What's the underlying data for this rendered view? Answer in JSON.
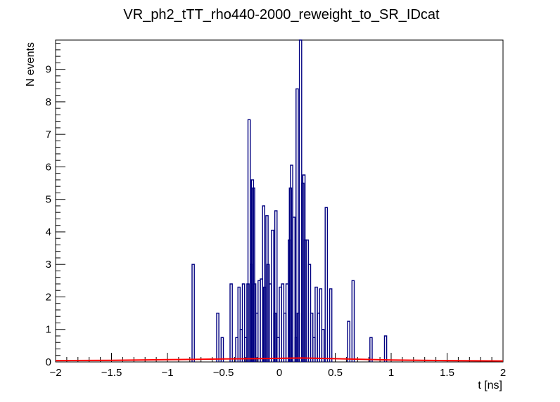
{
  "chart_data": {
    "type": "histogram",
    "title": "VR_ph2_tTT_rho440-2000_reweight_to_SR_IDcat",
    "xlabel": "t [ns]",
    "ylabel": "N events",
    "xlim": [
      -2,
      2
    ],
    "ylim": [
      0,
      9.9
    ],
    "x_tick_labels": [
      "−2",
      "−1.5",
      "−1",
      "−0.5",
      "0",
      "0.5",
      "1",
      "1.5",
      "2"
    ],
    "y_tick_labels": [
      "0",
      "1",
      "2",
      "3",
      "4",
      "5",
      "6",
      "7",
      "8",
      "9"
    ],
    "grid": false,
    "legend": "none",
    "series": [
      {
        "color": "#000080",
        "style": "step",
        "bins": [
          [
            -0.78,
            3.0
          ],
          [
            -0.56,
            1.5
          ],
          [
            -0.52,
            0.75
          ],
          [
            -0.44,
            2.4
          ],
          [
            -0.39,
            0.75
          ],
          [
            -0.37,
            2.3
          ],
          [
            -0.35,
            1.0
          ],
          [
            -0.33,
            2.4
          ],
          [
            -0.31,
            0.75
          ],
          [
            -0.29,
            2.4
          ],
          [
            -0.28,
            7.45
          ],
          [
            -0.26,
            3.0
          ],
          [
            -0.25,
            5.6
          ],
          [
            -0.24,
            5.35
          ],
          [
            -0.23,
            2.4
          ],
          [
            -0.21,
            1.5
          ],
          [
            -0.19,
            2.5
          ],
          [
            -0.17,
            2.55
          ],
          [
            -0.15,
            4.8
          ],
          [
            -0.14,
            2.3
          ],
          [
            -0.12,
            4.5
          ],
          [
            -0.11,
            3.0
          ],
          [
            -0.09,
            2.4
          ],
          [
            -0.07,
            4.05
          ],
          [
            -0.05,
            1.5
          ],
          [
            -0.04,
            4.65
          ],
          [
            -0.02,
            0.75
          ],
          [
            0.0,
            2.3
          ],
          [
            0.02,
            2.4
          ],
          [
            0.04,
            1.5
          ],
          [
            0.06,
            2.4
          ],
          [
            0.08,
            3.75
          ],
          [
            0.09,
            5.35
          ],
          [
            0.1,
            6.05
          ],
          [
            0.12,
            4.45
          ],
          [
            0.14,
            0.75
          ],
          [
            0.15,
            8.4
          ],
          [
            0.16,
            1.5
          ],
          [
            0.18,
            9.9
          ],
          [
            0.2,
            5.5
          ],
          [
            0.21,
            5.75
          ],
          [
            0.22,
            3.75
          ],
          [
            0.24,
            3.75
          ],
          [
            0.26,
            3.0
          ],
          [
            0.28,
            1.5
          ],
          [
            0.3,
            0.75
          ],
          [
            0.32,
            2.3
          ],
          [
            0.34,
            1.5
          ],
          [
            0.36,
            2.25
          ],
          [
            0.38,
            1.0
          ],
          [
            0.41,
            4.75
          ],
          [
            0.45,
            2.25
          ],
          [
            0.61,
            1.25
          ],
          [
            0.65,
            2.5
          ],
          [
            0.81,
            0.75
          ],
          [
            0.94,
            0.8
          ]
        ]
      },
      {
        "color": "#ff0000",
        "style": "line",
        "x": [
          -2.0,
          -1.5,
          -1.0,
          -0.5,
          0.0,
          0.2,
          0.5,
          1.0,
          1.5,
          2.0
        ],
        "y": [
          0.04,
          0.05,
          0.07,
          0.09,
          0.11,
          0.12,
          0.1,
          0.06,
          0.04,
          0.03
        ]
      }
    ]
  }
}
